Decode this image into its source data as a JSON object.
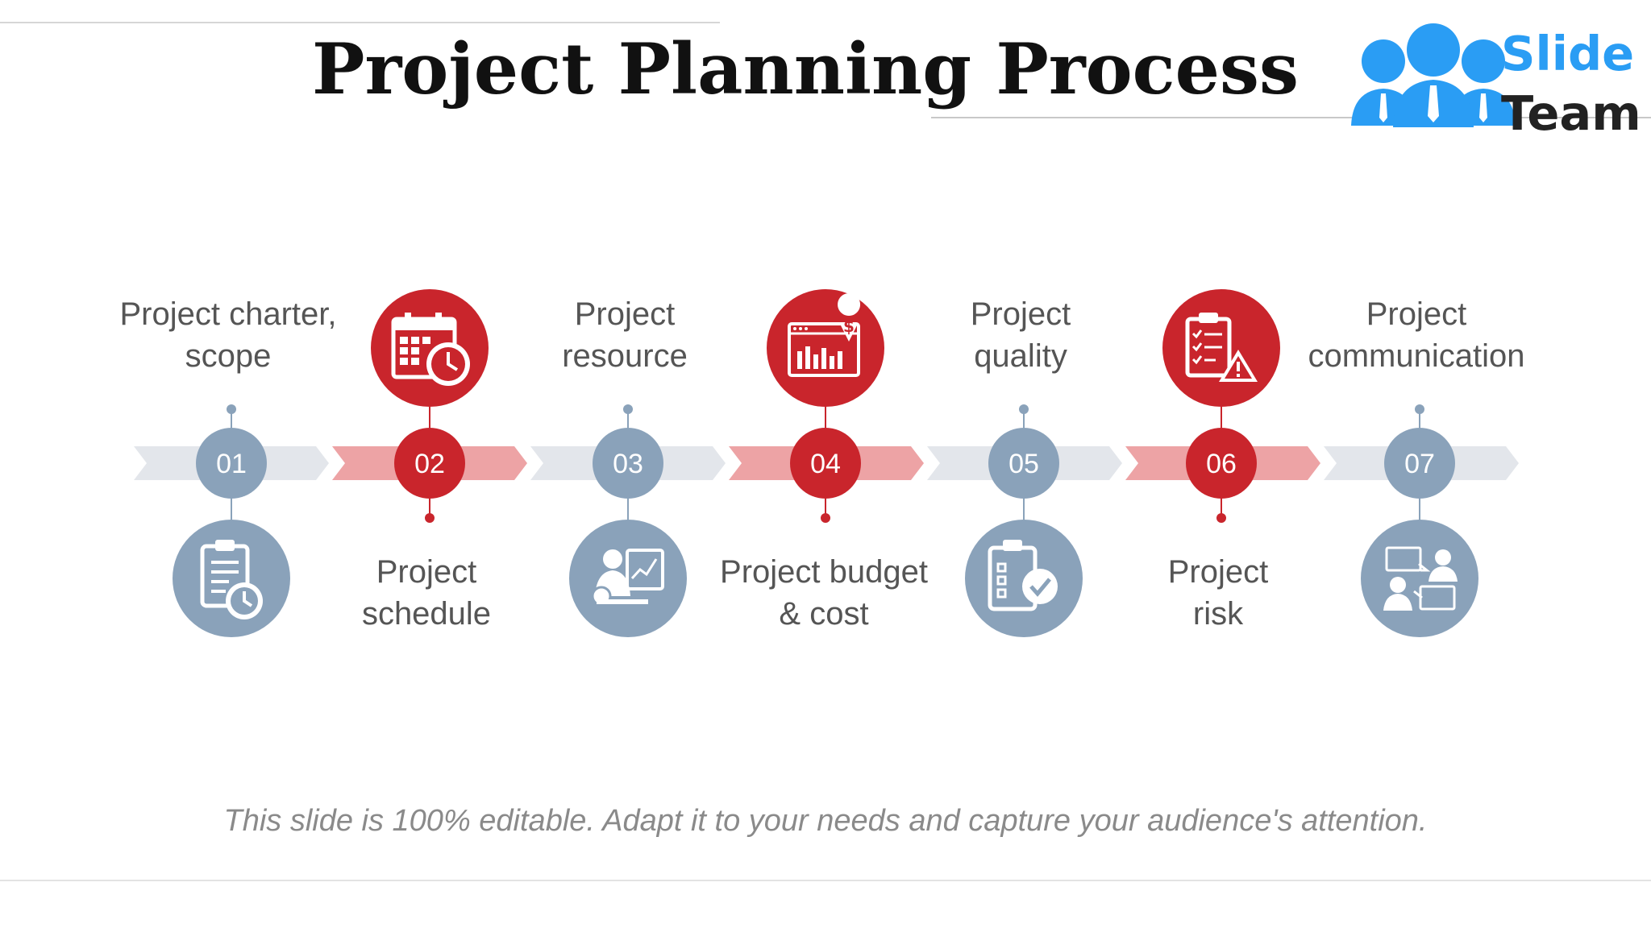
{
  "slide": {
    "title": "Project Planning Process",
    "footnote": "This slide is 100% editable. Adapt it to your needs and capture your audience's attention.",
    "logo": {
      "line1": "Slide",
      "line2": "Team",
      "icon": "team-people-icon"
    }
  },
  "colors": {
    "accent_red": "#c9252c",
    "accent_blue": "#8aa2ba",
    "arrow_red": "#eda3a5",
    "arrow_gray": "#e3e6eb",
    "text": "#555555"
  },
  "steps": [
    {
      "number": "01",
      "label_lines": [
        "Project charter,",
        "scope"
      ],
      "label_position": "top",
      "color": "blue",
      "icon": "clipboard-clock-icon"
    },
    {
      "number": "02",
      "label_lines": [
        "Project",
        "schedule"
      ],
      "label_position": "bottom",
      "color": "red",
      "icon": "calendar-clock-icon"
    },
    {
      "number": "03",
      "label_lines": [
        "Project",
        "resource"
      ],
      "label_position": "top",
      "color": "blue",
      "icon": "presenter-chart-icon"
    },
    {
      "number": "04",
      "label_lines": [
        "Project budget",
        "& cost"
      ],
      "label_position": "bottom",
      "color": "red",
      "icon": "budget-chart-icon"
    },
    {
      "number": "05",
      "label_lines": [
        "Project",
        "quality"
      ],
      "label_position": "top",
      "color": "blue",
      "icon": "quality-checklist-icon"
    },
    {
      "number": "06",
      "label_lines": [
        "Project",
        "risk"
      ],
      "label_position": "bottom",
      "color": "red",
      "icon": "risk-warning-icon"
    },
    {
      "number": "07",
      "label_lines": [
        "Project",
        "communication"
      ],
      "label_position": "top",
      "color": "blue",
      "icon": "communication-icon"
    }
  ]
}
